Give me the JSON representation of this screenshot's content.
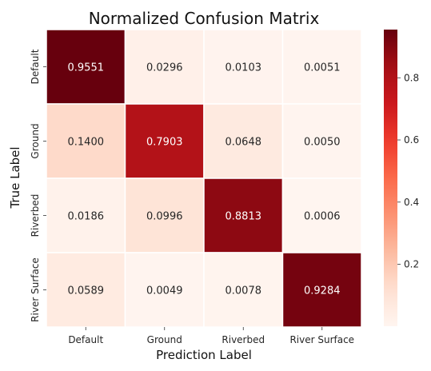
{
  "chart_data": {
    "type": "heatmap",
    "title": "Normalized Confusion Matrix",
    "xlabel": "Prediction Label",
    "ylabel": "True Label",
    "x_categories": [
      "Default",
      "Ground",
      "Riverbed",
      "River Surface"
    ],
    "y_categories": [
      "Default",
      "Ground",
      "Riverbed",
      "River Surface"
    ],
    "values": [
      [
        0.9551,
        0.0296,
        0.0103,
        0.0051
      ],
      [
        0.14,
        0.7903,
        0.0648,
        0.005
      ],
      [
        0.0186,
        0.0996,
        0.8813,
        0.0006
      ],
      [
        0.0589,
        0.0049,
        0.0078,
        0.9284
      ]
    ],
    "cell_labels": [
      [
        "0.9551",
        "0.0296",
        "0.0103",
        "0.0051"
      ],
      [
        "0.1400",
        "0.7903",
        "0.0648",
        "0.0050"
      ],
      [
        "0.0186",
        "0.0996",
        "0.8813",
        "0.0006"
      ],
      [
        "0.0589",
        "0.0049",
        "0.0078",
        "0.9284"
      ]
    ],
    "colormap": "Reds",
    "colorbar": {
      "range": [
        0.0006,
        0.9551
      ],
      "ticks": [
        0.2,
        0.4,
        0.6,
        0.8
      ],
      "tick_labels": [
        "0.2",
        "0.4",
        "0.6",
        "0.8"
      ]
    },
    "grid_line_color": "#ffffff"
  }
}
